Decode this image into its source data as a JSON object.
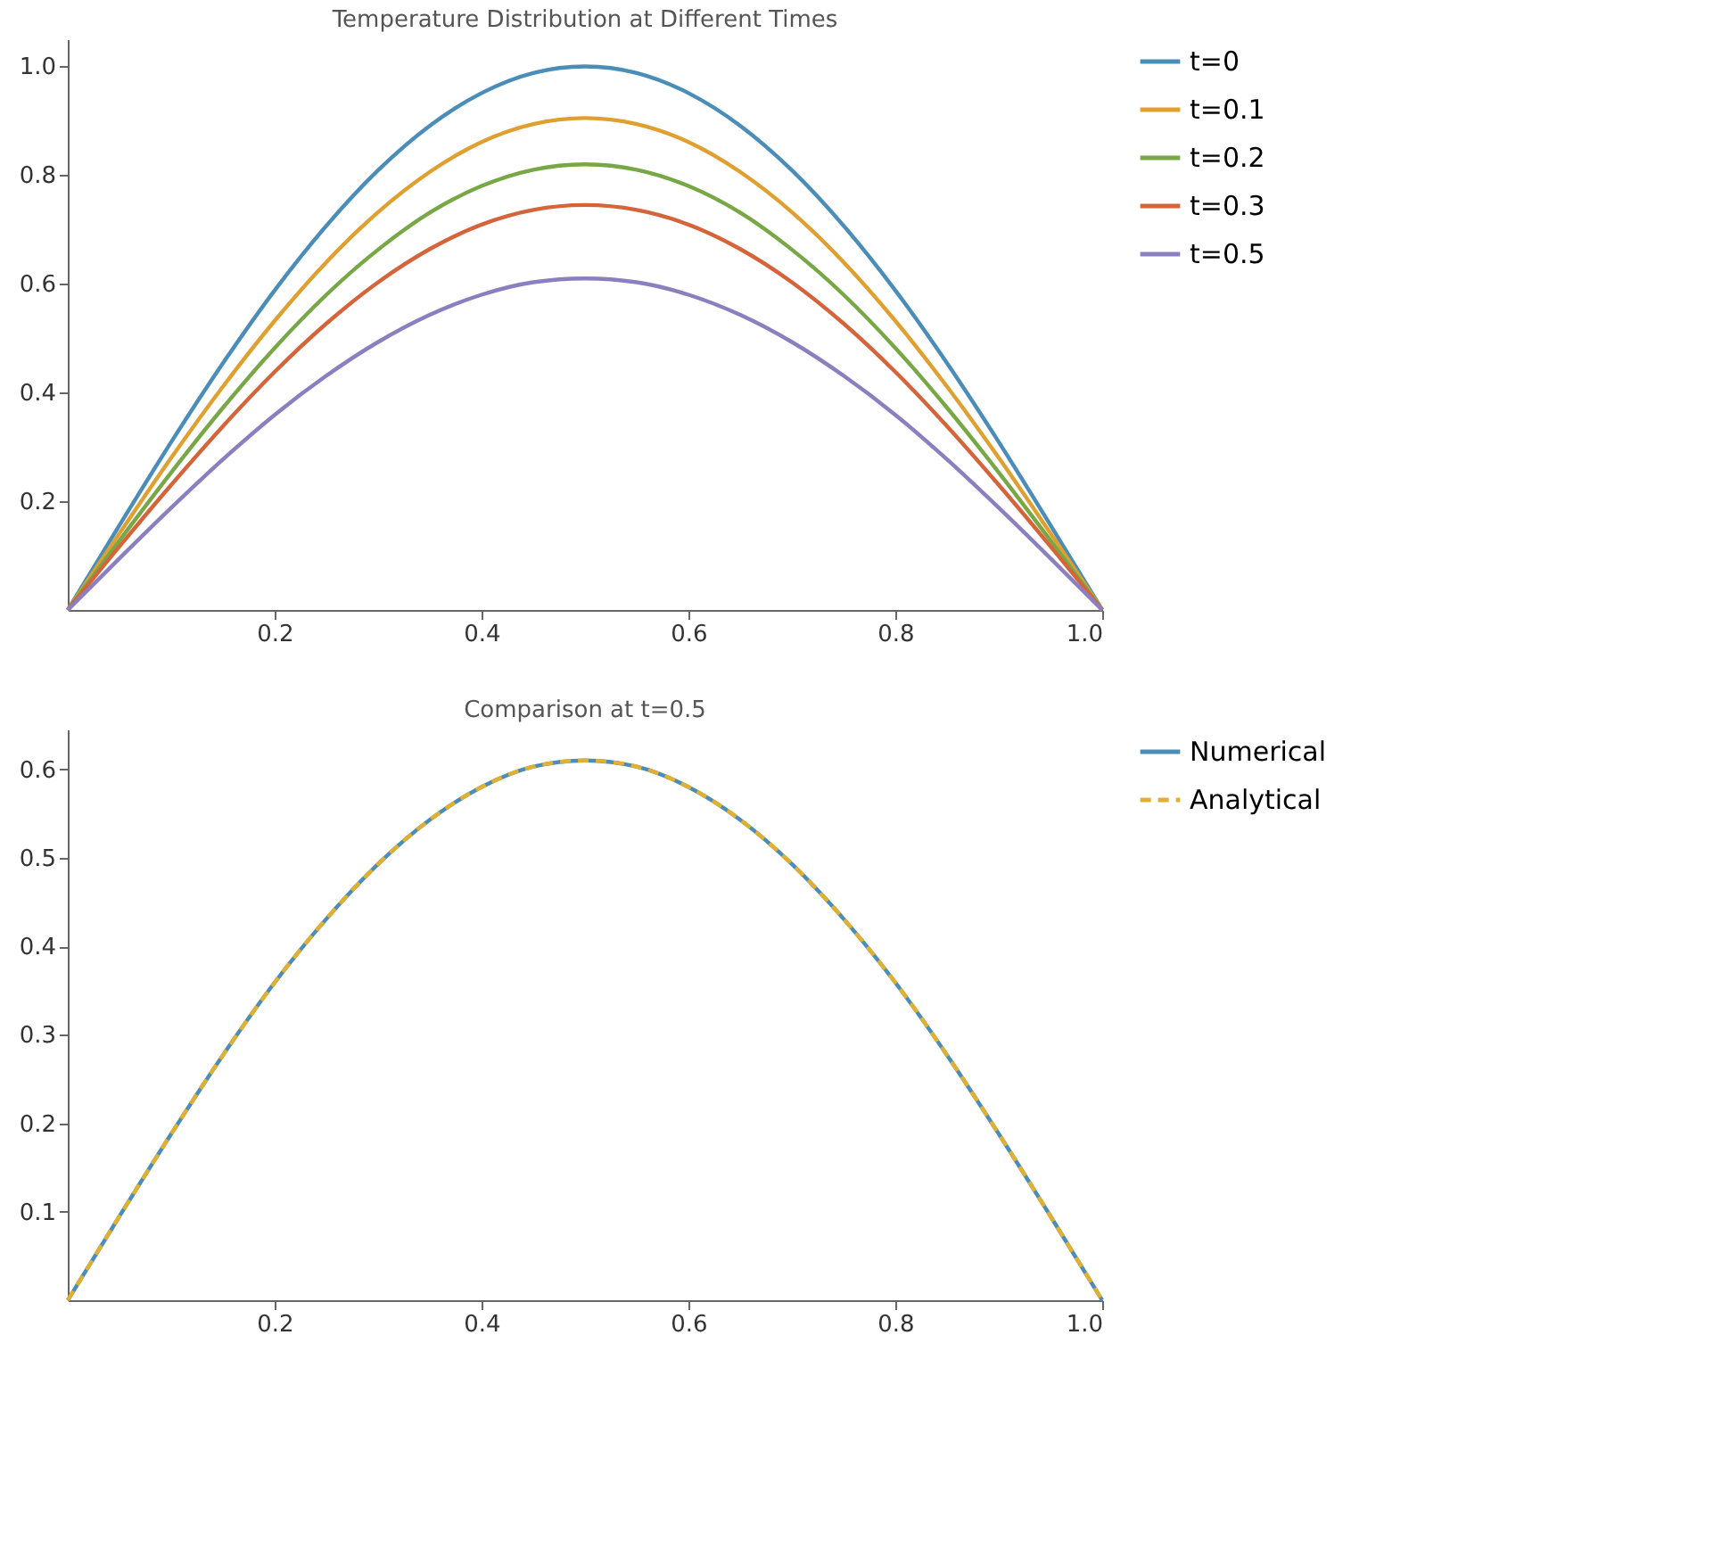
{
  "chart_data": [
    {
      "type": "line",
      "title": "Temperature Distribution at Different Times",
      "legend": "right",
      "x": [
        0,
        0.05,
        0.1,
        0.15,
        0.2,
        0.25,
        0.3,
        0.35,
        0.4,
        0.45,
        0.5,
        0.55,
        0.6,
        0.65,
        0.7,
        0.75,
        0.8,
        0.85,
        0.9,
        0.95,
        1.0
      ],
      "xlim": [
        0,
        1.0
      ],
      "ylim": [
        0,
        1.05
      ],
      "xticks": [
        0.2,
        0.4,
        0.6,
        0.8,
        {
          "value": 1.0,
          "label": "1.0"
        }
      ],
      "yticks": [
        0.2,
        0.4,
        0.6,
        0.8,
        {
          "value": 1.0,
          "label": "1.0"
        }
      ],
      "series": [
        {
          "name": "t=0",
          "color": "#4a8db8",
          "values": [
            0,
            0.156,
            0.309,
            0.454,
            0.588,
            0.707,
            0.809,
            0.891,
            0.951,
            0.988,
            1.0,
            0.988,
            0.951,
            0.891,
            0.809,
            0.707,
            0.588,
            0.454,
            0.309,
            0.156,
            0
          ]
        },
        {
          "name": "t=0.1",
          "color": "#e0a030",
          "values": [
            0,
            0.141,
            0.28,
            0.411,
            0.532,
            0.64,
            0.732,
            0.806,
            0.861,
            0.894,
            0.905,
            0.894,
            0.861,
            0.806,
            0.732,
            0.64,
            0.532,
            0.411,
            0.28,
            0.141,
            0
          ]
        },
        {
          "name": "t=0.2",
          "color": "#77a845",
          "values": [
            0,
            0.128,
            0.253,
            0.372,
            0.482,
            0.58,
            0.663,
            0.731,
            0.78,
            0.81,
            0.82,
            0.81,
            0.78,
            0.731,
            0.663,
            0.58,
            0.482,
            0.372,
            0.253,
            0.128,
            0
          ]
        },
        {
          "name": "t=0.3",
          "color": "#d5643a",
          "values": [
            0,
            0.117,
            0.23,
            0.338,
            0.438,
            0.527,
            0.603,
            0.664,
            0.709,
            0.736,
            0.745,
            0.736,
            0.709,
            0.664,
            0.603,
            0.527,
            0.438,
            0.338,
            0.23,
            0.117,
            0
          ]
        },
        {
          "name": "t=0.5",
          "color": "#8b7fbf",
          "values": [
            0,
            0.095,
            0.188,
            0.277,
            0.359,
            0.431,
            0.493,
            0.543,
            0.58,
            0.603,
            0.61,
            0.603,
            0.58,
            0.543,
            0.493,
            0.431,
            0.359,
            0.277,
            0.188,
            0.095,
            0
          ]
        }
      ]
    },
    {
      "type": "line",
      "title": "Comparison at t=0.5",
      "legend": "right",
      "x": [
        0,
        0.05,
        0.1,
        0.15,
        0.2,
        0.25,
        0.3,
        0.35,
        0.4,
        0.45,
        0.5,
        0.55,
        0.6,
        0.65,
        0.7,
        0.75,
        0.8,
        0.85,
        0.9,
        0.95,
        1.0
      ],
      "xlim": [
        0,
        1.0
      ],
      "ylim": [
        0,
        0.645
      ],
      "xticks": [
        0.2,
        0.4,
        0.6,
        0.8,
        {
          "value": 1.0,
          "label": "1.0"
        }
      ],
      "yticks": [
        0.1,
        0.2,
        0.3,
        0.4,
        0.5,
        0.6
      ],
      "series": [
        {
          "name": "Numerical",
          "color": "#4a8db8",
          "line_style": "solid",
          "values": [
            0,
            0.095,
            0.188,
            0.277,
            0.359,
            0.431,
            0.493,
            0.543,
            0.58,
            0.603,
            0.61,
            0.603,
            0.58,
            0.543,
            0.493,
            0.431,
            0.359,
            0.277,
            0.188,
            0.095,
            0
          ]
        },
        {
          "name": "Analytical",
          "color": "#e0b030",
          "line_style": "dashed",
          "values": [
            0,
            0.095,
            0.188,
            0.277,
            0.359,
            0.431,
            0.493,
            0.543,
            0.58,
            0.603,
            0.61,
            0.603,
            0.58,
            0.543,
            0.493,
            0.431,
            0.359,
            0.277,
            0.188,
            0.095,
            0
          ]
        }
      ]
    }
  ]
}
